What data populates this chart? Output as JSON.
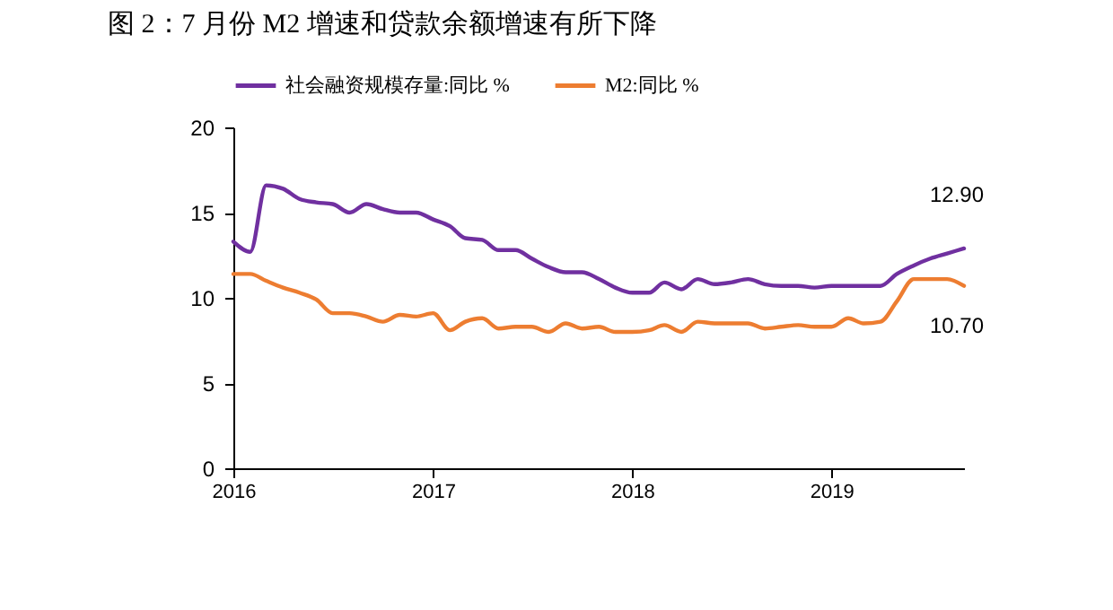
{
  "chart_data": {
    "type": "line",
    "title": "图 2：7 月份 M2 增速和贷款余额增速有所下降",
    "x": [
      "2016-01",
      "2016-02",
      "2016-03",
      "2016-04",
      "2016-05",
      "2016-06",
      "2016-07",
      "2016-08",
      "2016-09",
      "2016-10",
      "2016-11",
      "2016-12",
      "2017-01",
      "2017-02",
      "2017-03",
      "2017-04",
      "2017-05",
      "2017-06",
      "2017-07",
      "2017-08",
      "2017-09",
      "2017-10",
      "2017-11",
      "2017-12",
      "2018-01",
      "2018-02",
      "2018-03",
      "2018-04",
      "2018-05",
      "2018-06",
      "2018-07",
      "2018-08",
      "2018-09",
      "2018-10",
      "2018-11",
      "2018-12",
      "2019-01",
      "2019-02",
      "2019-03",
      "2019-04",
      "2019-05",
      "2019-06",
      "2019-07",
      "2019-08",
      "2019-09"
    ],
    "series": [
      {
        "name": "社会融资规模存量:同比 %",
        "color": "#7030a0",
        "values": [
          13.3,
          12.7,
          16.6,
          16.4,
          15.8,
          15.6,
          15.5,
          15.0,
          15.5,
          15.2,
          15.0,
          15.0,
          14.6,
          14.2,
          13.5,
          13.4,
          12.8,
          12.8,
          12.3,
          11.8,
          11.5,
          11.5,
          11.1,
          10.6,
          10.3,
          10.3,
          10.9,
          10.5,
          11.1,
          10.8,
          10.9,
          11.1,
          10.8,
          10.7,
          10.7,
          10.6,
          10.7,
          10.7,
          10.7,
          10.7,
          11.4,
          11.9,
          12.3,
          12.6,
          12.9
        ]
      },
      {
        "name": "M2:同比 %",
        "color": "#ed7d31",
        "values": [
          11.4,
          11.4,
          11.0,
          10.6,
          10.3,
          9.9,
          9.1,
          9.1,
          8.9,
          8.6,
          9.0,
          8.9,
          9.1,
          8.1,
          8.6,
          8.8,
          8.2,
          8.3,
          8.3,
          8.0,
          8.5,
          8.2,
          8.3,
          8.0,
          8.0,
          8.1,
          8.4,
          8.0,
          8.6,
          8.5,
          8.5,
          8.5,
          8.2,
          8.3,
          8.4,
          8.3,
          8.3,
          8.8,
          8.5,
          8.6,
          9.8,
          11.1,
          11.1,
          11.1,
          10.7
        ]
      }
    ],
    "xlim": [
      "2016-01",
      "2019-09"
    ],
    "xticks": [
      "2016",
      "2017",
      "2018",
      "2019"
    ],
    "ylim": [
      0,
      20
    ],
    "yticks": [
      0,
      5,
      10,
      15,
      20
    ],
    "grid": false,
    "legend": "top",
    "marker": "none",
    "line_style": "solid",
    "annotations": [
      {
        "text": "12.90",
        "x": "2019-09",
        "y": 12.9
      },
      {
        "text": "10.70",
        "x": "2019-09",
        "y": 10.7
      }
    ]
  }
}
